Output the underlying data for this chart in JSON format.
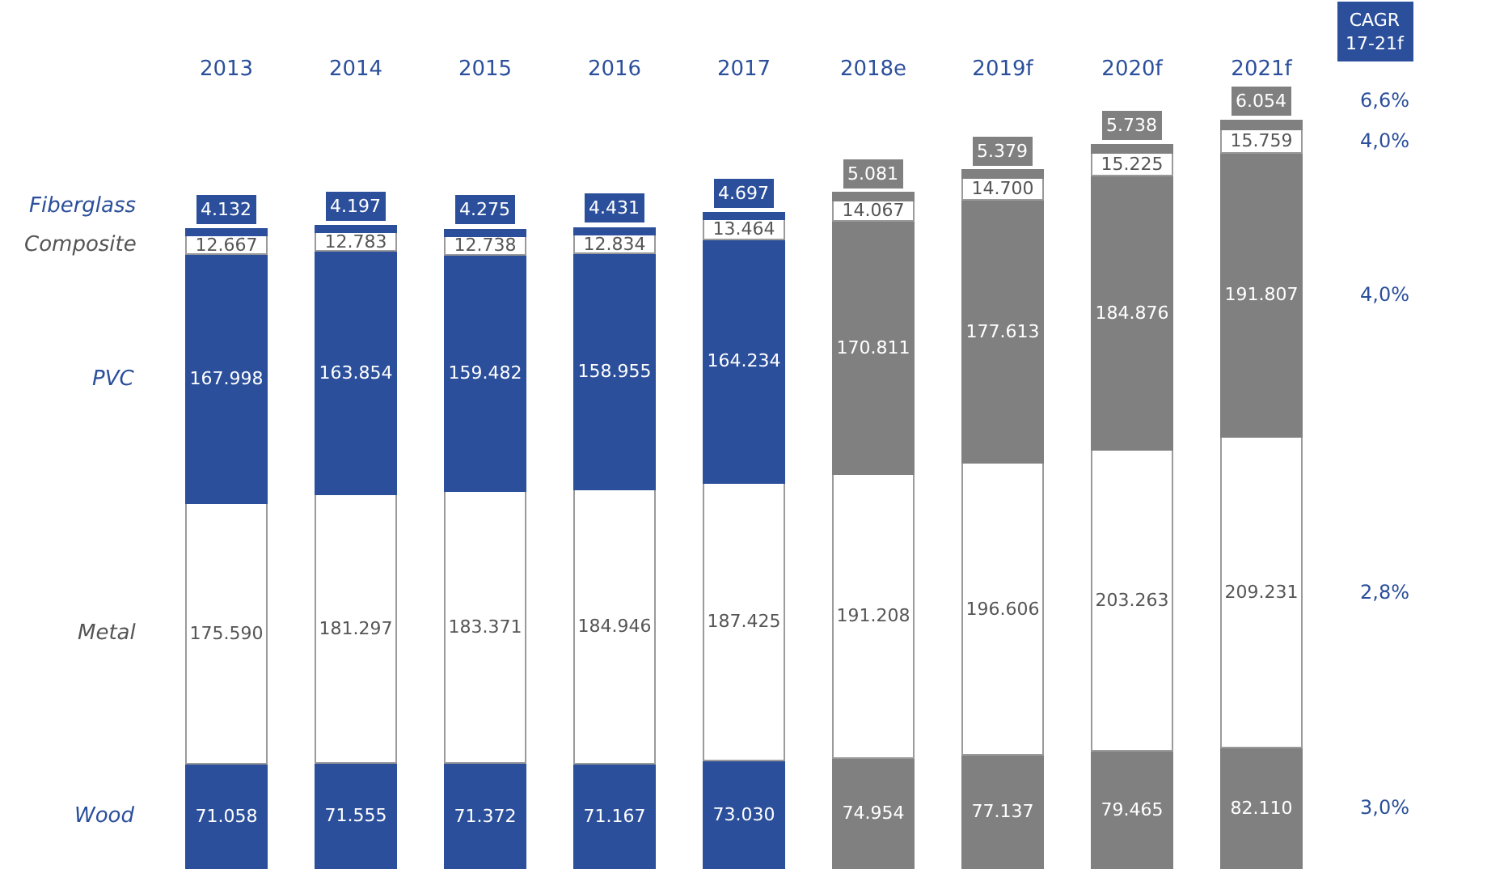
{
  "chart_data": {
    "type": "bar",
    "stacked": true,
    "legend": false,
    "categories": [
      "2013",
      "2014",
      "2015",
      "2016",
      "2017",
      "2018e",
      "2019f",
      "2020f",
      "2021f"
    ],
    "series": [
      {
        "name": "Wood",
        "colors": [
          "#2b4f9b",
          "#2b4f9b",
          "#2b4f9b",
          "#2b4f9b",
          "#2b4f9b",
          "#808080",
          "#808080",
          "#808080",
          "#808080"
        ],
        "values": [
          71058,
          71555,
          71372,
          71167,
          73030,
          74954,
          77137,
          79465,
          82110
        ],
        "value_labels": [
          "71.058",
          "71.555",
          "71.372",
          "71.167",
          "73.030",
          "74.954",
          "77.137",
          "79.465",
          "82.110"
        ]
      },
      {
        "name": "Metal",
        "color": "#ffffff",
        "values": [
          175590,
          181297,
          183371,
          184946,
          187425,
          191208,
          196606,
          203263,
          209231
        ],
        "value_labels": [
          "175.590",
          "181.297",
          "183.371",
          "184.946",
          "187.425",
          "191.208",
          "196.606",
          "203.263",
          "209.231"
        ]
      },
      {
        "name": "PVC",
        "colors": [
          "#2b4f9b",
          "#2b4f9b",
          "#2b4f9b",
          "#2b4f9b",
          "#2b4f9b",
          "#808080",
          "#808080",
          "#808080",
          "#808080"
        ],
        "values": [
          167998,
          163854,
          159482,
          158955,
          164234,
          170811,
          177613,
          184876,
          191807
        ],
        "value_labels": [
          "167.998",
          "163.854",
          "159.482",
          "158.955",
          "164.234",
          "170.811",
          "177.613",
          "184.876",
          "191.807"
        ]
      },
      {
        "name": "Composite",
        "color": "#ffffff",
        "values": [
          12667,
          12783,
          12738,
          12834,
          13464,
          14067,
          14700,
          15225,
          15759
        ],
        "value_labels": [
          "12.667",
          "12.783",
          "12.738",
          "12.834",
          "13.464",
          "14.067",
          "14.700",
          "15.225",
          "15.759"
        ]
      },
      {
        "name": "Fiberglass",
        "colors": [
          "#2b4f9b",
          "#2b4f9b",
          "#2b4f9b",
          "#2b4f9b",
          "#2b4f9b",
          "#808080",
          "#808080",
          "#808080",
          "#808080"
        ],
        "values": [
          4132,
          4197,
          4275,
          4431,
          4697,
          5081,
          5379,
          5738,
          6054
        ],
        "value_labels": [
          "4.132",
          "4.197",
          "4.275",
          "4.431",
          "4.697",
          "5.081",
          "5.379",
          "5.738",
          "6.054"
        ]
      }
    ],
    "annotations": [
      "CAGR 17-21f",
      "6,6%",
      "4,0%",
      "4,0%",
      "2,8%",
      "3,0%"
    ]
  }
}
